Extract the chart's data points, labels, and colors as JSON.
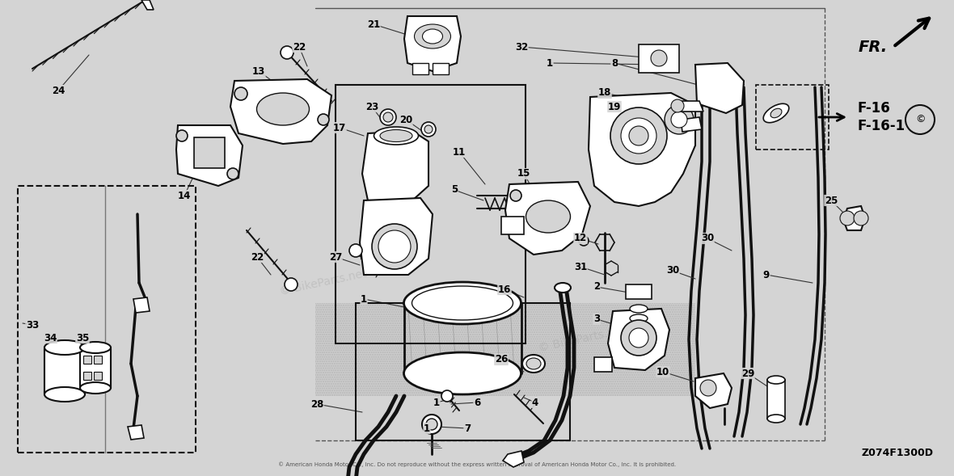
{
  "title": "Z074F1300D",
  "bg_color": "#d4d4d4",
  "line_color": "#111111",
  "figsize": [
    11.8,
    5.89
  ],
  "dpi": 100,
  "fr_label": "FR.",
  "f16_label": "F-16\nF-16-1"
}
